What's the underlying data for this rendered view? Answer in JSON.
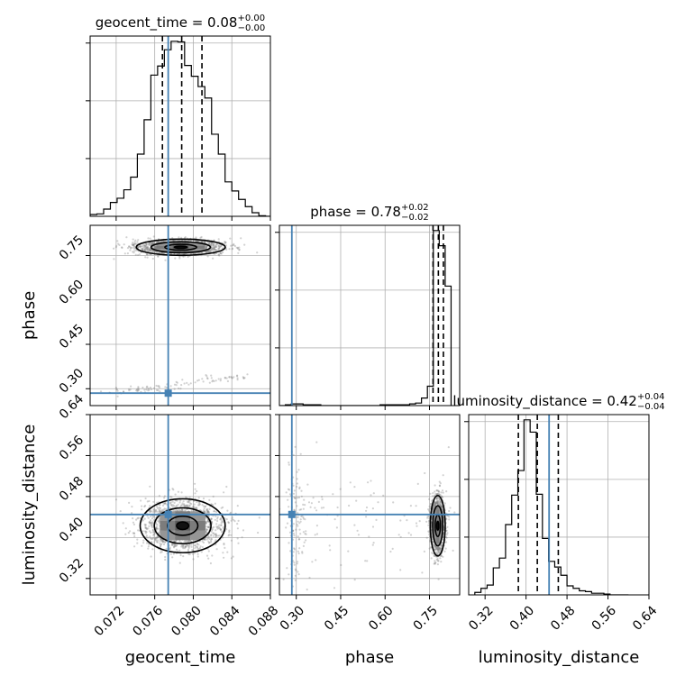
{
  "chart_data": {
    "type": "corner",
    "parameters": [
      "geocent_time",
      "phase",
      "luminosity_distance"
    ],
    "injection": {
      "geocent_time": 0.0774,
      "phase": 0.285,
      "luminosity_distance": 0.445
    },
    "true_color": "#4682b4",
    "grid": true,
    "titles": [
      {
        "name": "geocent_time",
        "median": "0.08",
        "plus": "+0.00",
        "minus": "−0.00"
      },
      {
        "name": "phase",
        "median": "0.78",
        "plus": "+0.02",
        "minus": "−0.02"
      },
      {
        "name": "luminosity_distance",
        "median": "0.42",
        "plus": "+0.04",
        "minus": "−0.04"
      }
    ],
    "diagonals": [
      {
        "parameter": "geocent_time",
        "xlim": [
          0.0693,
          0.088
        ],
        "quantiles": [
          0.0768,
          0.0788,
          0.0809
        ],
        "bin_edges": [
          0.0693,
          0.07,
          0.0707,
          0.0714,
          0.0721,
          0.0728,
          0.0735,
          0.0742,
          0.0749,
          0.0756,
          0.0763,
          0.077,
          0.0777,
          0.0784,
          0.0791,
          0.0798,
          0.0805,
          0.0812,
          0.0819,
          0.0826,
          0.0833,
          0.084,
          0.0847,
          0.0854,
          0.0861,
          0.0868,
          0.0875,
          0.088
        ],
        "counts": [
          3,
          4,
          12,
          23,
          30,
          44,
          65,
          103,
          160,
          234,
          249,
          276,
          290,
          289,
          250,
          232,
          215,
          196,
          136,
          103,
          57,
          42,
          28,
          16,
          6,
          1,
          0
        ]
      },
      {
        "parameter": "phase",
        "xlim": [
          0.243,
          0.852
        ],
        "quantiles": [
          0.762,
          0.78,
          0.797
        ],
        "bin_edges": [
          0.243,
          0.263,
          0.283,
          0.303,
          0.323,
          0.343,
          0.363,
          0.383,
          0.403,
          0.423,
          0.443,
          0.463,
          0.483,
          0.503,
          0.523,
          0.543,
          0.563,
          0.583,
          0.603,
          0.623,
          0.643,
          0.663,
          0.683,
          0.703,
          0.723,
          0.743,
          0.763,
          0.783,
          0.803,
          0.823
        ],
        "counts": [
          0,
          1,
          2,
          2,
          1,
          1,
          1,
          0,
          0,
          0,
          0,
          0,
          0,
          0,
          0,
          0,
          0,
          1,
          1,
          1,
          1,
          1,
          2,
          3,
          9,
          23,
          208,
          190,
          142
        ]
      },
      {
        "parameter": "luminosity_distance",
        "xlim": [
          0.288,
          0.64
        ],
        "quantiles": [
          0.385,
          0.422,
          0.463
        ],
        "bin_edges": [
          0.3,
          0.312,
          0.324,
          0.336,
          0.348,
          0.36,
          0.372,
          0.384,
          0.396,
          0.408,
          0.42,
          0.432,
          0.444,
          0.456,
          0.468,
          0.48,
          0.492,
          0.504,
          0.516,
          0.528,
          0.54,
          0.552,
          0.564,
          0.576,
          0.588,
          0.6
        ],
        "counts": [
          3,
          8,
          12,
          33,
          45,
          86,
          122,
          152,
          214,
          199,
          123,
          69,
          41,
          34,
          24,
          11,
          8,
          5,
          4,
          2,
          2,
          1,
          0,
          0,
          0
        ]
      }
    ],
    "panels": [
      {
        "x": "geocent_time",
        "y": "phase",
        "xlim": [
          0.0693,
          0.088
        ],
        "ylim": [
          0.243,
          0.852
        ],
        "modes": [
          {
            "cx": 0.0787,
            "cy": 0.778,
            "sx": 0.0022,
            "sy": 0.013,
            "w": 0.94
          },
          {
            "cx": 0.0795,
            "cy": 0.32,
            "sx": 0.003,
            "sy": 0.025,
            "w": 0.06
          }
        ]
      },
      {
        "x": "geocent_time",
        "y": "luminosity_distance",
        "xlim": [
          0.0693,
          0.088
        ],
        "ylim": [
          0.288,
          0.64
        ],
        "modes": [
          {
            "cx": 0.0789,
            "cy": 0.423,
            "sx": 0.0021,
            "sy": 0.025,
            "w": 1.0
          }
        ]
      },
      {
        "x": "phase",
        "y": "luminosity_distance",
        "xlim": [
          0.243,
          0.852
        ],
        "ylim": [
          0.288,
          0.64
        ],
        "modes": [
          {
            "cx": 0.778,
            "cy": 0.423,
            "sx": 0.012,
            "sy": 0.028,
            "w": 0.88
          },
          {
            "cx": 0.3,
            "cy": 0.43,
            "sx": 0.02,
            "sy": 0.06,
            "w": 0.06
          },
          {
            "cx": 0.55,
            "cy": 0.43,
            "sx": 0.15,
            "sy": 0.06,
            "w": 0.06
          }
        ]
      }
    ],
    "ticks": {
      "geocent_time": {
        "values": [
          0.072,
          0.076,
          0.08,
          0.084,
          0.088
        ],
        "labels": [
          "0.072",
          "0.076",
          "0.080",
          "0.084",
          "0.088"
        ]
      },
      "phase": {
        "values": [
          0.3,
          0.45,
          0.6,
          0.75
        ],
        "labels": [
          "0.30",
          "0.45",
          "0.60",
          "0.75"
        ]
      },
      "luminosity_distance": {
        "values": [
          0.32,
          0.4,
          0.48,
          0.56,
          0.64
        ],
        "labels": [
          "0.32",
          "0.40",
          "0.48",
          "0.56",
          "0.64"
        ]
      }
    },
    "xlabels": [
      "geocent_time",
      "phase",
      "luminosity_distance"
    ],
    "ylabels": [
      "phase",
      "luminosity_distance"
    ]
  }
}
